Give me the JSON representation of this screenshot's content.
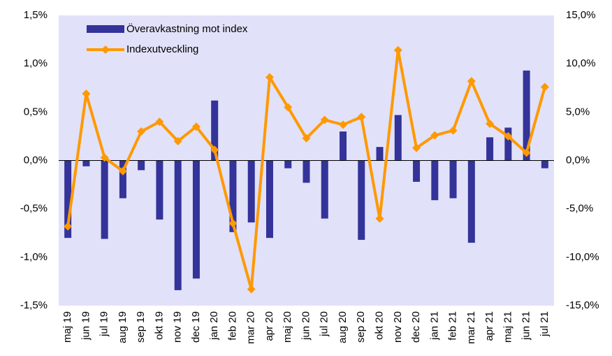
{
  "chart_data": {
    "type": "bar-line",
    "categories": [
      "maj 19",
      "jun 19",
      "jul 19",
      "aug 19",
      "sep 19",
      "okt 19",
      "nov 19",
      "dec 19",
      "jan 20",
      "feb 20",
      "mar 20",
      "apr 20",
      "maj 20",
      "jun 20",
      "jul 20",
      "aug 20",
      "sep 20",
      "okt 20",
      "nov 20",
      "dec 20",
      "jan 21",
      "feb 21",
      "mar 21",
      "apr 21",
      "maj 21",
      "jun 21",
      "jul 21"
    ],
    "series": [
      {
        "name": "Överavkastning mot index",
        "type": "bar",
        "color": "#333399",
        "values": [
          -0.8,
          -0.06,
          -0.81,
          -0.39,
          -0.1,
          -0.61,
          -1.34,
          -1.22,
          0.62,
          -0.74,
          -0.64,
          -0.8,
          -0.08,
          -0.23,
          -0.6,
          0.3,
          -0.82,
          0.14,
          0.47,
          -0.22,
          -0.41,
          -0.39,
          -0.85,
          0.24,
          0.34,
          0.93,
          -0.08
        ]
      },
      {
        "name": "Indexutveckling",
        "type": "line",
        "axis": "y2",
        "color": "#ff9900",
        "values": [
          -6.8,
          6.9,
          0.3,
          -1.1,
          3.0,
          4.0,
          2.0,
          3.5,
          1.1,
          -6.5,
          -13.3,
          8.6,
          5.5,
          2.3,
          4.2,
          3.7,
          4.5,
          -6.0,
          11.4,
          1.3,
          2.6,
          3.1,
          8.2,
          3.8,
          2.5,
          0.8,
          7.6
        ]
      }
    ],
    "ylim": [
      -1.5,
      1.5
    ],
    "yticks": [
      {
        "value": -1.5,
        "label": "-1,5%"
      },
      {
        "value": -1.0,
        "label": "-1,0%"
      },
      {
        "value": -0.5,
        "label": "-0,5%"
      },
      {
        "value": 0,
        "label": "0,0%"
      },
      {
        "value": 0.5,
        "label": "0,5%"
      },
      {
        "value": 1.0,
        "label": "1,0%"
      },
      {
        "value": 1.5,
        "label": "1,5%"
      }
    ],
    "y2lim": [
      -15,
      15
    ],
    "y2ticks": [
      {
        "value": -15,
        "label": "-15,0%"
      },
      {
        "value": -10,
        "label": "-10,0%"
      },
      {
        "value": -5,
        "label": "-5,0%"
      },
      {
        "value": 0,
        "label": "0,0%"
      },
      {
        "value": 5,
        "label": "5,0%"
      },
      {
        "value": 10,
        "label": "10,0%"
      },
      {
        "value": 15,
        "label": "15,0%"
      }
    ],
    "legend": "top-left",
    "background": "#e1e1f9"
  }
}
